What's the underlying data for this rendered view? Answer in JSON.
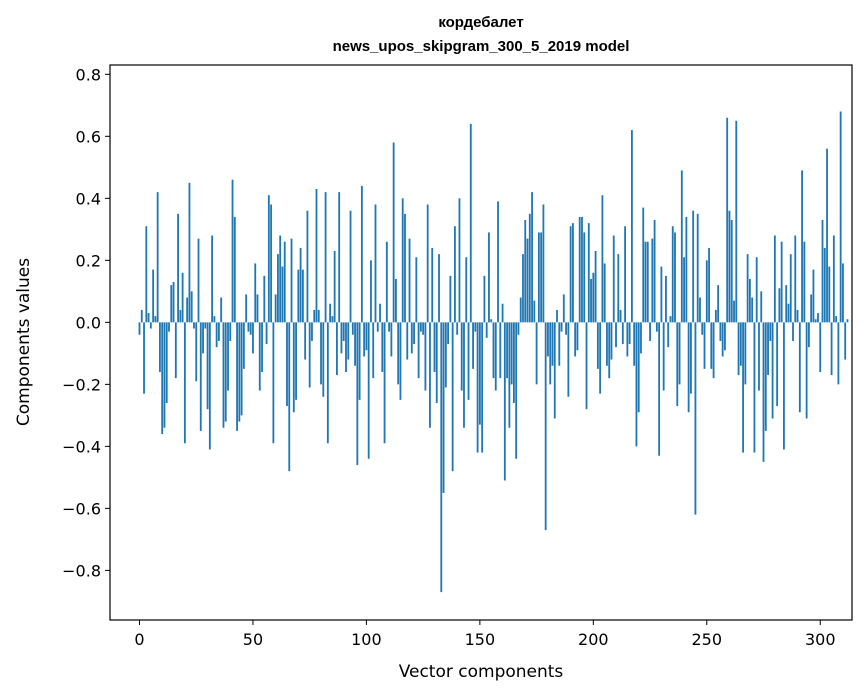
{
  "chart_data": {
    "type": "bar",
    "title": "кордебалет",
    "subtitle": "news_upos_skipgram_300_5_2019 model",
    "xlabel": "Vector components",
    "ylabel": "Components values",
    "xlim": [
      -13,
      314
    ],
    "ylim": [
      -0.96,
      0.83
    ],
    "xticks": [
      0,
      50,
      100,
      150,
      200,
      250,
      300
    ],
    "xtick_labels": [
      "0",
      "50",
      "100",
      "150",
      "200",
      "250",
      "300"
    ],
    "yticks": [
      -0.8,
      -0.6,
      -0.4,
      -0.2,
      0.0,
      0.2,
      0.4,
      0.6,
      0.8
    ],
    "ytick_labels": [
      "−0.8",
      "−0.6",
      "−0.4",
      "−0.2",
      "0.0",
      "0.2",
      "0.4",
      "0.6",
      "0.8"
    ],
    "grid": false,
    "bar_color": "#1f77b4",
    "values": [
      -0.04,
      0.04,
      -0.23,
      0.31,
      0.03,
      -0.02,
      0.17,
      0.02,
      0.42,
      -0.16,
      -0.36,
      -0.34,
      -0.26,
      -0.03,
      0.12,
      0.13,
      -0.18,
      0.35,
      0.04,
      0.16,
      -0.39,
      0.08,
      0.45,
      0.1,
      -0.02,
      -0.19,
      0.27,
      -0.35,
      -0.1,
      -0.02,
      -0.28,
      -0.41,
      0.28,
      0.02,
      -0.08,
      -0.06,
      0.08,
      -0.34,
      -0.32,
      -0.22,
      -0.06,
      0.46,
      0.34,
      -0.35,
      -0.32,
      -0.3,
      -0.15,
      0.09,
      -0.03,
      -0.04,
      -0.1,
      0.19,
      0.09,
      -0.22,
      -0.16,
      0.15,
      -0.07,
      0.41,
      0.38,
      -0.39,
      0.09,
      0.22,
      0.28,
      0.18,
      0.26,
      -0.27,
      -0.48,
      0.27,
      -0.29,
      -0.25,
      0.17,
      0.24,
      0.17,
      -0.12,
      0.36,
      -0.21,
      -0.06,
      0.04,
      0.43,
      0.04,
      -0.2,
      -0.24,
      0.42,
      -0.39,
      0.06,
      0.02,
      0.23,
      -0.17,
      0.42,
      -0.1,
      -0.06,
      -0.16,
      -0.12,
      0.36,
      -0.04,
      -0.14,
      -0.46,
      -0.25,
      0.44,
      -0.11,
      -0.09,
      -0.44,
      0.2,
      -0.18,
      0.38,
      -0.03,
      0.06,
      -0.16,
      -0.39,
      0.26,
      -0.03,
      -0.11,
      0.58,
      0.14,
      -0.2,
      -0.25,
      0.4,
      0.35,
      -0.12,
      0.27,
      -0.1,
      -0.07,
      0.21,
      -0.18,
      -0.03,
      -0.04,
      -0.22,
      0.38,
      -0.34,
      0.24,
      -0.16,
      -0.26,
      0.22,
      -0.87,
      -0.55,
      -0.21,
      -0.07,
      0.15,
      -0.48,
      0.31,
      -0.04,
      0.4,
      -0.22,
      -0.34,
      0.21,
      -0.25,
      0.64,
      -0.15,
      -0.03,
      -0.42,
      -0.33,
      -0.42,
      0.15,
      -0.05,
      0.29,
      0.01,
      -0.18,
      -0.22,
      0.39,
      -0.18,
      0.06,
      -0.51,
      -0.18,
      -0.34,
      -0.2,
      -0.26,
      -0.44,
      -0.04,
      0.08,
      0.22,
      0.33,
      0.27,
      0.35,
      0.42,
      0.07,
      -0.2,
      0.29,
      0.29,
      0.38,
      -0.67,
      -0.11,
      -0.2,
      -0.14,
      -0.31,
      0.04,
      -0.14,
      -0.03,
      0.09,
      -0.04,
      -0.24,
      0.31,
      0.32,
      -0.11,
      -0.09,
      0.34,
      0.34,
      0.29,
      -0.28,
      0.32,
      0.14,
      0.16,
      0.23,
      -0.15,
      -0.23,
      0.41,
      0.19,
      -0.14,
      -0.18,
      -0.12,
      0.28,
      -0.08,
      0.22,
      0.04,
      -0.07,
      0.31,
      -0.11,
      -0.07,
      0.62,
      -0.14,
      -0.4,
      -0.29,
      -0.1,
      0.37,
      0.26,
      0.26,
      -0.06,
      0.27,
      0.33,
      -0.03,
      -0.43,
      0.18,
      -0.22,
      0.15,
      -0.08,
      0.02,
      0.31,
      0.29,
      -0.27,
      -0.2,
      0.49,
      0.21,
      0.34,
      -0.29,
      -0.23,
      0.36,
      -0.62,
      0.35,
      0.08,
      -0.04,
      -0.15,
      0.2,
      0.24,
      -0.15,
      -0.18,
      0.04,
      0.12,
      -0.06,
      -0.11,
      -0.09,
      0.66,
      0.36,
      0.33,
      0.07,
      0.65,
      -0.17,
      -0.14,
      -0.42,
      -0.2,
      0.22,
      0.14,
      0.08,
      -0.42,
      0.21,
      -0.22,
      0.1,
      -0.45,
      -0.35,
      -0.17,
      -0.06,
      -0.31,
      0.28,
      -0.27,
      0.11,
      0.26,
      -0.41,
      0.12,
      0.06,
      0.22,
      -0.06,
      0.28,
      0.04,
      -0.29,
      0.49,
      0.26,
      -0.31,
      -0.08,
      0.09,
      0.17,
      0.01,
      0.03,
      -0.16,
      0.33,
      0.24,
      0.56,
      0.18,
      -0.17,
      0.28,
      0.02,
      -0.2,
      0.68,
      0.19,
      -0.12,
      0.01
    ]
  }
}
